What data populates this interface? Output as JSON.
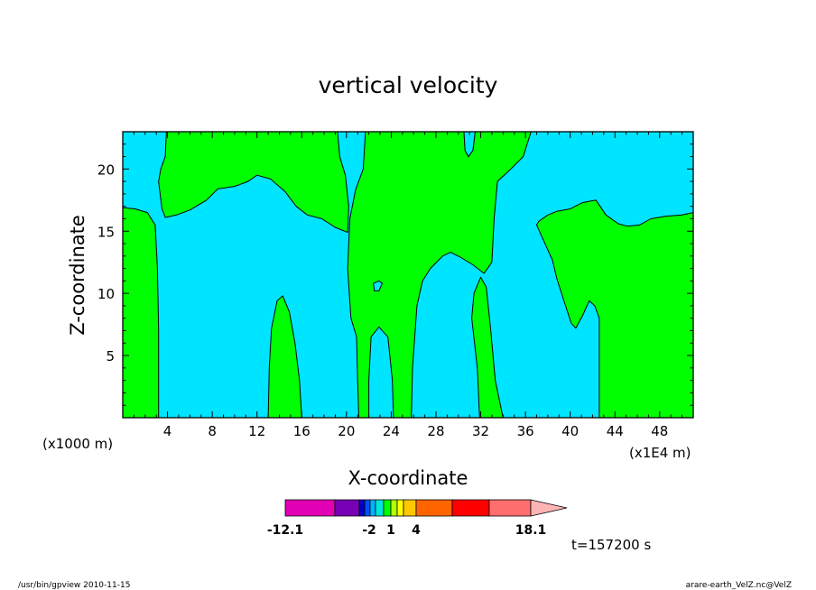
{
  "chart_data": {
    "type": "contour",
    "title": "vertical velocity",
    "xlabel": "X-coordinate",
    "ylabel": "Z-coordinate",
    "x_unit_left": "(x1000 m)",
    "x_unit_right": "(x1E4 m)",
    "xlim": [
      0,
      51
    ],
    "ylim": [
      0,
      23
    ],
    "x_ticks": [
      4,
      8,
      12,
      16,
      20,
      24,
      28,
      32,
      36,
      40,
      44,
      48
    ],
    "y_ticks": [
      5,
      10,
      15,
      20
    ],
    "colors": {
      "positive": "#00ff00",
      "negative": "#00e5ff"
    },
    "fill_regions": [
      {
        "sign": "positive",
        "points": [
          [
            0,
            0
          ],
          [
            0,
            16.9
          ],
          [
            1.1,
            16.8
          ],
          [
            2.2,
            16.5
          ],
          [
            2.9,
            15.5
          ],
          [
            3.1,
            12
          ],
          [
            3.2,
            7
          ],
          [
            3.2,
            0
          ]
        ]
      },
      {
        "sign": "positive",
        "points": [
          [
            3.9,
            23
          ],
          [
            3.8,
            21
          ],
          [
            3.4,
            20
          ],
          [
            3.2,
            19
          ],
          [
            3.5,
            16.8
          ],
          [
            3.8,
            16.1
          ],
          [
            4.8,
            16.3
          ],
          [
            6,
            16.7
          ],
          [
            7.5,
            17.5
          ],
          [
            8.5,
            18.4
          ],
          [
            10,
            18.6
          ],
          [
            11.2,
            19
          ],
          [
            12,
            19.5
          ],
          [
            13.2,
            19.2
          ],
          [
            14.5,
            18.2
          ],
          [
            15.5,
            17
          ],
          [
            16.5,
            16.3
          ],
          [
            17.8,
            16
          ],
          [
            19,
            15.3
          ],
          [
            20.1,
            14.9
          ],
          [
            20.2,
            17
          ],
          [
            19.9,
            19.5
          ],
          [
            19.4,
            21
          ],
          [
            19.2,
            23
          ]
        ]
      },
      {
        "sign": "positive",
        "points": [
          [
            13,
            0
          ],
          [
            13.1,
            4
          ],
          [
            13.3,
            7.2
          ],
          [
            13.8,
            9.4
          ],
          [
            14.3,
            9.8
          ],
          [
            14.9,
            8.5
          ],
          [
            15.4,
            6
          ],
          [
            15.8,
            3
          ],
          [
            16,
            0
          ]
        ]
      },
      {
        "sign": "positive",
        "points": [
          [
            21.7,
            23
          ],
          [
            21.5,
            20
          ],
          [
            20.8,
            18.3
          ],
          [
            20.3,
            16
          ],
          [
            20.1,
            12
          ],
          [
            20.4,
            8
          ],
          [
            20.9,
            6.5
          ],
          [
            21,
            3
          ],
          [
            21.1,
            0
          ],
          [
            22,
            0
          ],
          [
            22,
            3
          ],
          [
            22.2,
            6.5
          ],
          [
            22.9,
            7.3
          ],
          [
            23.7,
            6.5
          ],
          [
            24.1,
            3
          ],
          [
            24.2,
            0
          ],
          [
            25.8,
            0
          ],
          [
            25.9,
            4
          ],
          [
            26.3,
            9
          ],
          [
            26.8,
            11
          ],
          [
            27.5,
            12
          ],
          [
            28.6,
            13
          ],
          [
            29.3,
            13.3
          ],
          [
            30.2,
            12.9
          ],
          [
            31.3,
            12.3
          ],
          [
            32.3,
            11.6
          ],
          [
            33,
            12.5
          ],
          [
            33.2,
            16
          ],
          [
            33.5,
            19
          ],
          [
            34.7,
            20
          ],
          [
            35.8,
            21
          ],
          [
            36.5,
            23
          ],
          [
            31.5,
            23
          ],
          [
            31.3,
            21.5
          ],
          [
            30.9,
            21
          ],
          [
            30.6,
            21.5
          ],
          [
            30.5,
            23
          ]
        ]
      },
      {
        "sign": "positive",
        "points": [
          [
            31.9,
            0
          ],
          [
            31.7,
            4
          ],
          [
            31.2,
            8
          ],
          [
            31.4,
            10
          ],
          [
            32,
            11.3
          ],
          [
            32.5,
            10.5
          ],
          [
            32.9,
            7
          ],
          [
            33.3,
            3
          ],
          [
            34,
            0
          ]
        ]
      },
      {
        "sign": "positive",
        "points": [
          [
            37.2,
            15.8
          ],
          [
            37,
            15.5
          ],
          [
            37.6,
            14.3
          ],
          [
            38.4,
            12.7
          ],
          [
            38.8,
            11.2
          ],
          [
            39.4,
            9.5
          ],
          [
            40.1,
            7.6
          ],
          [
            40.5,
            7.2
          ],
          [
            41.1,
            8.2
          ],
          [
            41.7,
            9.4
          ],
          [
            42.2,
            9
          ],
          [
            42.6,
            8
          ],
          [
            42.6,
            4
          ],
          [
            42.6,
            0
          ],
          [
            51,
            0
          ],
          [
            51,
            16.5
          ],
          [
            50,
            16.3
          ],
          [
            48.5,
            16.2
          ],
          [
            47.2,
            16
          ],
          [
            46.2,
            15.5
          ],
          [
            45.1,
            15.4
          ],
          [
            44.3,
            15.6
          ],
          [
            43.2,
            16.3
          ],
          [
            42.3,
            17.5
          ],
          [
            41.1,
            17.3
          ],
          [
            40,
            16.8
          ],
          [
            38.8,
            16.6
          ],
          [
            38,
            16.3
          ]
        ]
      }
    ],
    "negative_islands": [
      {
        "points": [
          [
            22.5,
            10.2
          ],
          [
            22.4,
            10.8
          ],
          [
            22.9,
            11
          ],
          [
            23.2,
            10.8
          ],
          [
            22.9,
            10.2
          ]
        ]
      },
      {
        "points": [
          [
            30.6,
            21.5
          ],
          [
            30.5,
            23
          ],
          [
            31.5,
            23
          ],
          [
            31.3,
            21.5
          ],
          [
            30.9,
            21
          ]
        ]
      }
    ],
    "colorbar": {
      "colors": [
        "#e100b4",
        "#7800b4",
        "#0000c8",
        "#0050ff",
        "#00b4ff",
        "#00e6dc",
        "#00ff00",
        "#b4ff00",
        "#ffff00",
        "#ffc800",
        "#ff6400",
        "#ff0000",
        "#ff6e6e",
        "#ffb4b4"
      ],
      "labels": [
        "-12.1",
        "-2",
        "1",
        "4",
        "18.1"
      ]
    },
    "time_label": "t=157200 s"
  },
  "footer": {
    "left": "/usr/bin/gpview 2010-11-15",
    "right": "arare-earth_VelZ.nc@VelZ"
  }
}
